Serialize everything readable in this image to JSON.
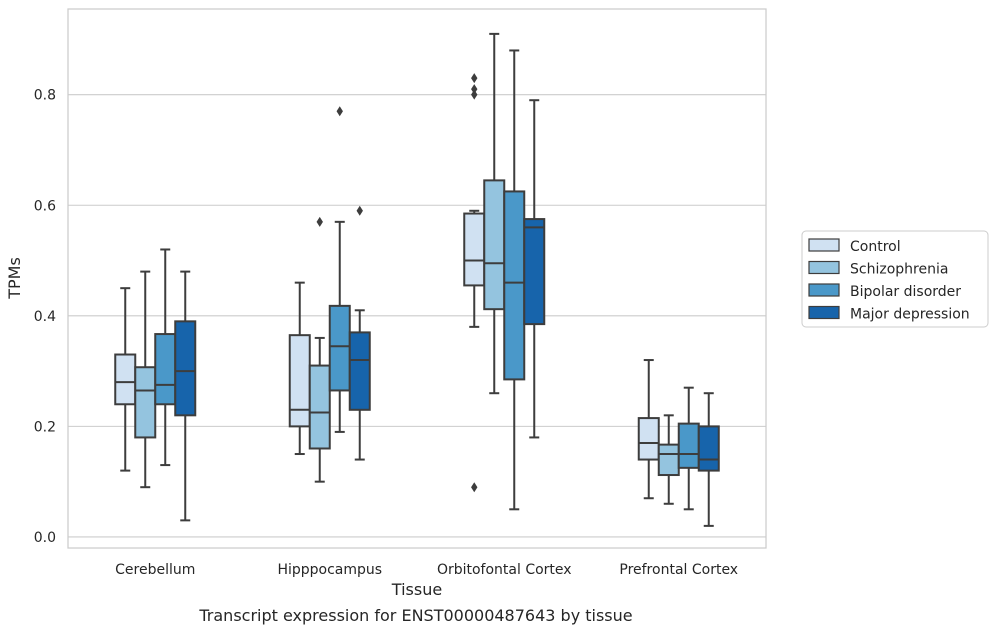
{
  "caption": "Transcript expression for ENST00000487643 by tissue",
  "chart_data": {
    "type": "boxplot",
    "title": "",
    "xlabel": "Tissue",
    "ylabel": "TPMs",
    "ylim": [
      -0.02,
      0.955
    ],
    "yticks": [
      0.0,
      0.2,
      0.4,
      0.6,
      0.8
    ],
    "ytick_labels": [
      "0.0",
      "0.2",
      "0.4",
      "0.6",
      "0.8"
    ],
    "grid": "horizontal",
    "legend_position": "right",
    "categories": [
      "Cerebellum",
      "Hipppocampus",
      "Orbitofontal Cortex",
      "Prefrontal Cortex"
    ],
    "series": [
      {
        "name": "Control",
        "color": "#d0e1f2",
        "boxes": [
          {
            "whislo": 0.12,
            "q1": 0.24,
            "med": 0.28,
            "q3": 0.33,
            "whishi": 0.45,
            "fliers": []
          },
          {
            "whislo": 0.15,
            "q1": 0.2,
            "med": 0.23,
            "q3": 0.365,
            "whishi": 0.46,
            "fliers": []
          },
          {
            "whislo": 0.38,
            "q1": 0.455,
            "med": 0.5,
            "q3": 0.585,
            "whishi": 0.59,
            "fliers": [
              0.09,
              0.8,
              0.81,
              0.83
            ]
          },
          {
            "whislo": 0.07,
            "q1": 0.14,
            "med": 0.17,
            "q3": 0.215,
            "whishi": 0.32,
            "fliers": []
          }
        ]
      },
      {
        "name": "Schizophrenia",
        "color": "#94c4df",
        "boxes": [
          {
            "whislo": 0.09,
            "q1": 0.18,
            "med": 0.265,
            "q3": 0.307,
            "whishi": 0.48,
            "fliers": []
          },
          {
            "whislo": 0.1,
            "q1": 0.16,
            "med": 0.225,
            "q3": 0.31,
            "whishi": 0.36,
            "fliers": [
              0.57
            ]
          },
          {
            "whislo": 0.26,
            "q1": 0.412,
            "med": 0.495,
            "q3": 0.645,
            "whishi": 0.91,
            "fliers": []
          },
          {
            "whislo": 0.06,
            "q1": 0.112,
            "med": 0.15,
            "q3": 0.167,
            "whishi": 0.22,
            "fliers": []
          }
        ]
      },
      {
        "name": "Bipolar disorder",
        "color": "#4a98c9",
        "boxes": [
          {
            "whislo": 0.13,
            "q1": 0.24,
            "med": 0.275,
            "q3": 0.367,
            "whishi": 0.52,
            "fliers": []
          },
          {
            "whislo": 0.19,
            "q1": 0.265,
            "med": 0.345,
            "q3": 0.418,
            "whishi": 0.57,
            "fliers": [
              0.77
            ]
          },
          {
            "whislo": 0.05,
            "q1": 0.285,
            "med": 0.46,
            "q3": 0.625,
            "whishi": 0.88,
            "fliers": []
          },
          {
            "whislo": 0.05,
            "q1": 0.125,
            "med": 0.15,
            "q3": 0.205,
            "whishi": 0.27,
            "fliers": []
          }
        ]
      },
      {
        "name": "Major depression",
        "color": "#1764ab",
        "boxes": [
          {
            "whislo": 0.03,
            "q1": 0.22,
            "med": 0.3,
            "q3": 0.39,
            "whishi": 0.48,
            "fliers": []
          },
          {
            "whislo": 0.14,
            "q1": 0.23,
            "med": 0.32,
            "q3": 0.37,
            "whishi": 0.41,
            "fliers": [
              0.59
            ]
          },
          {
            "whislo": 0.18,
            "q1": 0.385,
            "med": 0.56,
            "q3": 0.575,
            "whishi": 0.79,
            "fliers": []
          },
          {
            "whislo": 0.02,
            "q1": 0.12,
            "med": 0.14,
            "q3": 0.2,
            "whishi": 0.26,
            "fliers": []
          }
        ]
      }
    ]
  }
}
